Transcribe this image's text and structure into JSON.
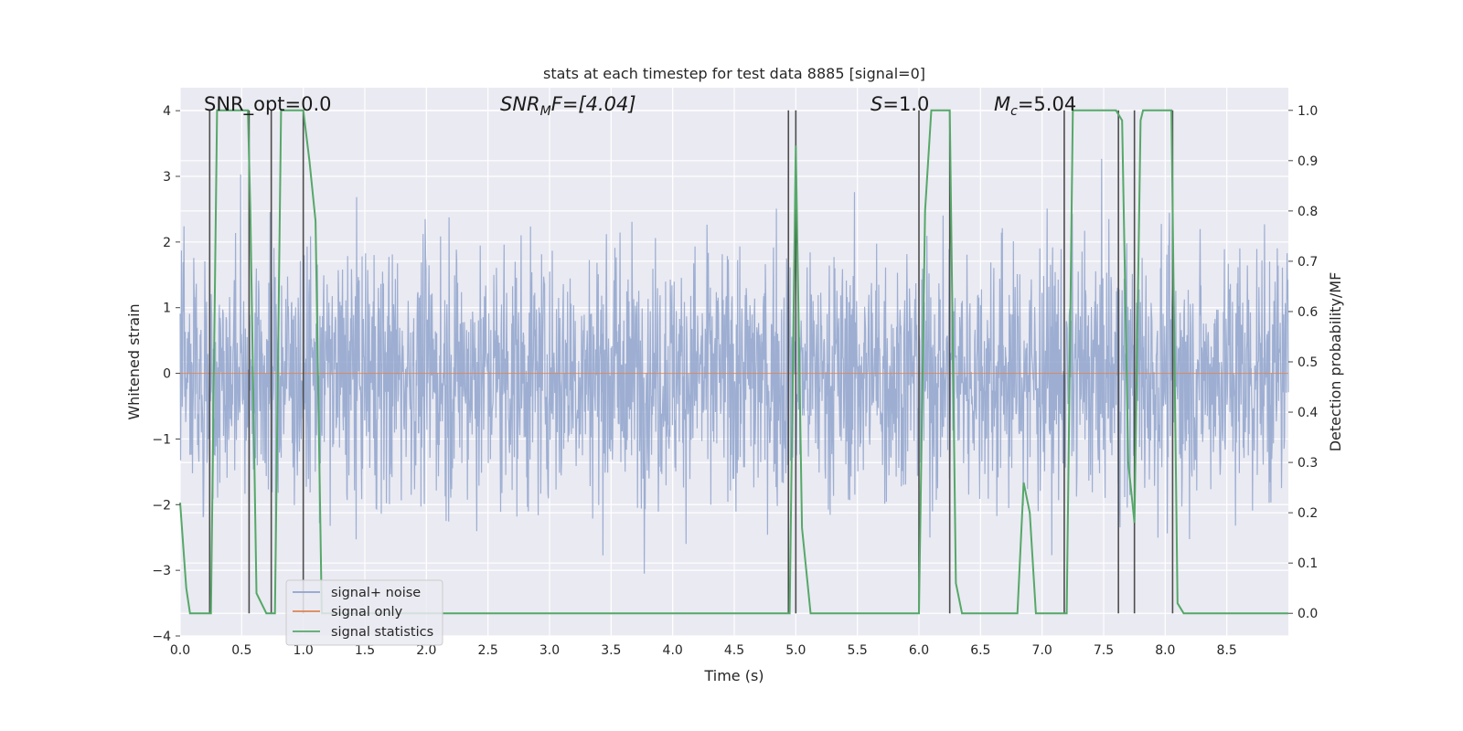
{
  "chart_data": {
    "type": "line",
    "title": "stats at each timestep for test data 8885 [signal=0]",
    "xlabel": "Time (s)",
    "ylabel_left": "Whitened strain",
    "ylabel_right": "Detection probability/MF",
    "xlim": [
      0.0,
      9.0
    ],
    "ylim_left": [
      -4.0,
      4.35
    ],
    "ylim_right": [
      -0.045,
      1.045
    ],
    "x_ticks": [
      "0.0",
      "0.5",
      "1.0",
      "1.5",
      "2.0",
      "2.5",
      "3.0",
      "3.5",
      "4.0",
      "4.5",
      "5.0",
      "5.5",
      "6.0",
      "6.5",
      "7.0",
      "7.5",
      "8.0",
      "8.5"
    ],
    "y_ticks_left": [
      "4",
      "3",
      "2",
      "1",
      "0",
      "−1",
      "−2",
      "−3",
      "−4"
    ],
    "y_ticks_right": [
      "1.0",
      "0.9",
      "0.8",
      "0.7",
      "0.6",
      "0.5",
      "0.4",
      "0.3",
      "0.2",
      "0.1",
      "0.0"
    ],
    "grid": true,
    "legend_position": "lower-left",
    "legend": [
      "signal+ noise",
      "signal only",
      "signal statistics"
    ],
    "annotations": {
      "snr_opt": "SNR_opt=0.0",
      "snr_mf_main": "SNR",
      "snr_mf_sub": "M",
      "snr_mf_rest": "F=[4.04]",
      "s_main": "S",
      "s_rest": "=1.0",
      "mc_main": "M",
      "mc_sub": "c",
      "mc_rest": "=5.04"
    },
    "series": [
      {
        "name": "signal+ noise",
        "axis": "left",
        "color": "#8fa3cc",
        "style": "dense noise, sigma ~1.0, range approx -3.7 to 4.0"
      },
      {
        "name": "signal only",
        "axis": "left",
        "color": "#dd8452",
        "x": [
          0.0,
          9.0
        ],
        "y": [
          0.0,
          0.0
        ]
      },
      {
        "name": "signal statistics",
        "axis": "right",
        "color": "#55a868",
        "x": [
          0.0,
          0.05,
          0.08,
          0.25,
          0.3,
          0.55,
          0.57,
          0.62,
          0.7,
          0.77,
          0.82,
          1.0,
          1.05,
          1.1,
          1.15,
          1.2,
          1.3,
          2.0,
          3.0,
          4.0,
          4.9,
          4.95,
          5.0,
          5.05,
          5.12,
          6.0,
          6.05,
          6.1,
          6.25,
          6.3,
          6.35,
          6.4,
          6.8,
          6.85,
          6.9,
          6.95,
          7.0,
          7.15,
          7.2,
          7.25,
          7.3,
          7.6,
          7.65,
          7.7,
          7.75,
          7.8,
          7.82,
          7.9,
          8.05,
          8.1,
          8.15,
          8.2,
          8.5,
          9.0
        ],
        "y": [
          0.22,
          0.05,
          0.0,
          0.0,
          1.0,
          1.0,
          0.8,
          0.04,
          0.0,
          0.0,
          1.0,
          1.0,
          0.9,
          0.78,
          0.0,
          0.0,
          0.0,
          0.0,
          0.0,
          0.0,
          0.0,
          0.0,
          0.93,
          0.17,
          0.0,
          0.0,
          0.8,
          1.0,
          1.0,
          0.06,
          0.0,
          0.0,
          0.0,
          0.26,
          0.2,
          0.0,
          0.0,
          0.0,
          0.0,
          1.0,
          1.0,
          1.0,
          0.98,
          0.3,
          0.18,
          0.98,
          1.0,
          1.0,
          1.0,
          0.02,
          0.0,
          0.0,
          0.0,
          0.0
        ]
      }
    ],
    "vertical_lines": {
      "color": "#4d4d4d",
      "x": [
        0.24,
        0.56,
        0.74,
        1.0,
        4.94,
        5.0,
        6.0,
        6.25,
        7.18,
        7.62,
        7.75,
        8.06
      ]
    }
  }
}
